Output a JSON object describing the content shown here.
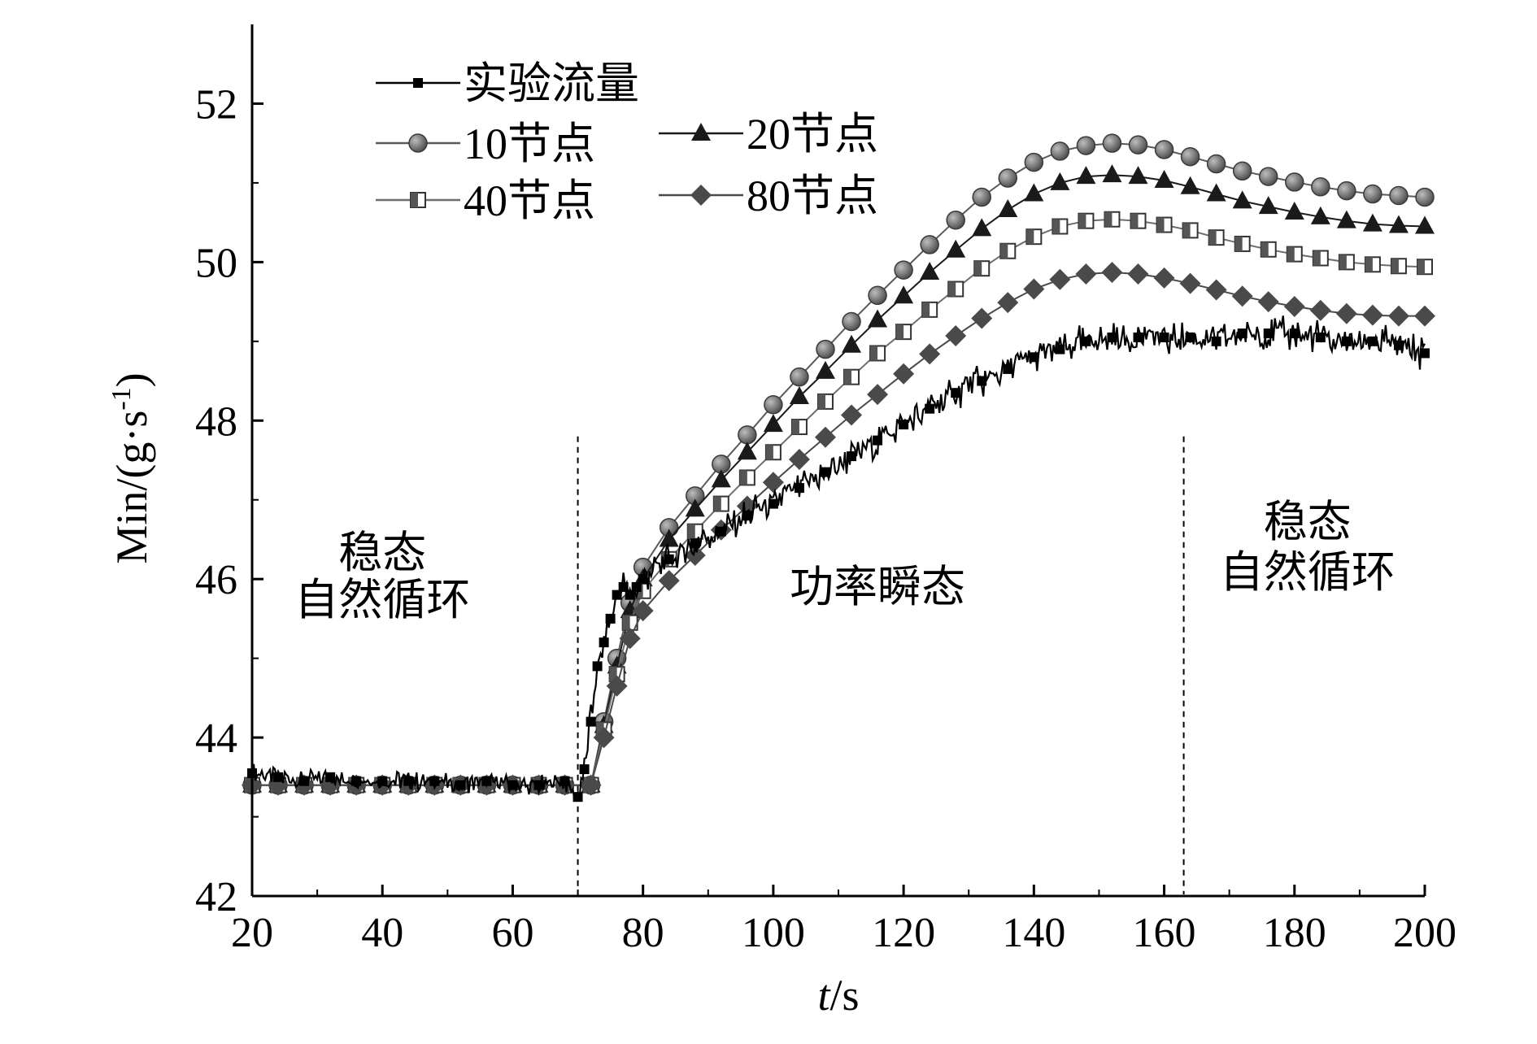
{
  "chart_data": {
    "type": "line",
    "xlabel_italic": "t",
    "xlabel_unit": "/s",
    "ylabel": "Min/(g·s",
    "ylabel_sup": "-1",
    "ylabel_close": ")",
    "xlim": [
      20,
      200
    ],
    "ylim": [
      42,
      53
    ],
    "xticks": [
      20,
      40,
      60,
      80,
      100,
      120,
      140,
      160,
      180,
      200
    ],
    "yticks": [
      42,
      44,
      46,
      48,
      50,
      52
    ],
    "grid": false,
    "legend_position": "top-left",
    "divider_times": [
      70,
      163
    ],
    "regions": [
      {
        "lines": [
          "稳态",
          "自然循环"
        ],
        "x": 40
      },
      {
        "lines": [
          "功率瞬态"
        ],
        "x": 116
      },
      {
        "lines": [
          "稳态",
          "自然循环"
        ],
        "x": 182
      }
    ],
    "series": [
      {
        "name": "实验流量",
        "marker": "square",
        "color": "#000000",
        "noisy": true,
        "x": [
          20,
          24,
          28,
          32,
          36,
          40,
          44,
          48,
          52,
          56,
          60,
          64,
          68,
          70,
          71,
          72,
          73,
          74,
          75,
          76,
          77,
          78,
          79,
          80,
          84,
          88,
          92,
          96,
          100,
          104,
          108,
          112,
          116,
          120,
          124,
          128,
          132,
          136,
          140,
          144,
          148,
          152,
          156,
          160,
          164,
          168,
          172,
          176,
          180,
          184,
          188,
          192,
          196,
          200
        ],
        "y": [
          43.55,
          43.5,
          43.45,
          43.5,
          43.45,
          43.45,
          43.45,
          43.45,
          43.4,
          43.45,
          43.4,
          43.4,
          43.45,
          43.25,
          43.6,
          44.2,
          44.9,
          45.2,
          45.5,
          45.8,
          45.9,
          45.8,
          45.9,
          46.0,
          46.25,
          46.45,
          46.6,
          46.8,
          46.95,
          47.15,
          47.35,
          47.55,
          47.75,
          47.95,
          48.15,
          48.35,
          48.5,
          48.65,
          48.8,
          48.9,
          49.0,
          49.05,
          49.05,
          49.05,
          49.05,
          49.0,
          49.1,
          49.1,
          49.1,
          49.05,
          49.0,
          49.0,
          48.95,
          48.85
        ]
      },
      {
        "name": "10节点",
        "marker": "circle",
        "color": "#5a5a5a",
        "x": [
          20,
          24,
          28,
          32,
          36,
          40,
          44,
          48,
          52,
          56,
          60,
          64,
          68,
          72,
          74,
          76,
          78,
          80,
          84,
          88,
          92,
          96,
          100,
          104,
          108,
          112,
          116,
          120,
          124,
          128,
          132,
          136,
          140,
          144,
          148,
          152,
          156,
          160,
          164,
          168,
          172,
          176,
          180,
          184,
          188,
          192,
          196,
          200
        ],
        "y": [
          43.4,
          43.4,
          43.4,
          43.4,
          43.4,
          43.4,
          43.4,
          43.4,
          43.4,
          43.4,
          43.4,
          43.4,
          43.4,
          43.4,
          44.2,
          45.0,
          45.7,
          46.15,
          46.65,
          47.05,
          47.45,
          47.82,
          48.2,
          48.55,
          48.9,
          49.25,
          49.58,
          49.9,
          50.22,
          50.53,
          50.82,
          51.06,
          51.26,
          51.4,
          51.47,
          51.5,
          51.48,
          51.42,
          51.33,
          51.24,
          51.15,
          51.08,
          51.01,
          50.95,
          50.9,
          50.86,
          50.84,
          50.82
        ]
      },
      {
        "name": "20节点",
        "marker": "triangle",
        "color": "#1a1a1a",
        "x": [
          20,
          24,
          28,
          32,
          36,
          40,
          44,
          48,
          52,
          56,
          60,
          64,
          68,
          72,
          74,
          76,
          78,
          80,
          84,
          88,
          92,
          96,
          100,
          104,
          108,
          112,
          116,
          120,
          124,
          128,
          132,
          136,
          140,
          144,
          148,
          152,
          156,
          160,
          164,
          168,
          172,
          176,
          180,
          184,
          188,
          192,
          196,
          200
        ],
        "y": [
          43.4,
          43.4,
          43.4,
          43.4,
          43.4,
          43.4,
          43.4,
          43.4,
          43.4,
          43.4,
          43.4,
          43.4,
          43.4,
          43.4,
          44.15,
          44.9,
          45.6,
          46.0,
          46.5,
          46.88,
          47.25,
          47.6,
          47.95,
          48.3,
          48.62,
          48.95,
          49.27,
          49.57,
          49.87,
          50.15,
          50.42,
          50.66,
          50.86,
          51.0,
          51.08,
          51.1,
          51.08,
          51.03,
          50.95,
          50.86,
          50.77,
          50.7,
          50.63,
          50.57,
          50.52,
          50.48,
          50.46,
          50.45
        ]
      },
      {
        "name": "40节点",
        "marker": "half-square",
        "color": "#6e6e6e",
        "x": [
          20,
          24,
          28,
          32,
          36,
          40,
          44,
          48,
          52,
          56,
          60,
          64,
          68,
          72,
          74,
          76,
          78,
          80,
          84,
          88,
          92,
          96,
          100,
          104,
          108,
          112,
          116,
          120,
          124,
          128,
          132,
          136,
          140,
          144,
          148,
          152,
          156,
          160,
          164,
          168,
          172,
          176,
          180,
          184,
          188,
          192,
          196,
          200
        ],
        "y": [
          43.4,
          43.4,
          43.4,
          43.4,
          43.4,
          43.4,
          43.4,
          43.4,
          43.4,
          43.4,
          43.4,
          43.4,
          43.4,
          43.4,
          44.1,
          44.8,
          45.45,
          45.85,
          46.25,
          46.6,
          46.95,
          47.28,
          47.6,
          47.92,
          48.24,
          48.55,
          48.85,
          49.12,
          49.4,
          49.66,
          49.92,
          50.14,
          50.32,
          50.45,
          50.52,
          50.54,
          50.52,
          50.47,
          50.4,
          50.31,
          50.23,
          50.16,
          50.1,
          50.05,
          50.0,
          49.97,
          49.95,
          49.94
        ]
      },
      {
        "name": "80节点",
        "marker": "diamond",
        "color": "#4a4a4a",
        "x": [
          20,
          24,
          28,
          32,
          36,
          40,
          44,
          48,
          52,
          56,
          60,
          64,
          68,
          72,
          74,
          76,
          78,
          80,
          84,
          88,
          92,
          96,
          100,
          104,
          108,
          112,
          116,
          120,
          124,
          128,
          132,
          136,
          140,
          144,
          148,
          152,
          156,
          160,
          164,
          168,
          172,
          176,
          180,
          184,
          188,
          192,
          196,
          200
        ],
        "y": [
          43.4,
          43.4,
          43.4,
          43.4,
          43.4,
          43.4,
          43.4,
          43.4,
          43.4,
          43.4,
          43.4,
          43.4,
          43.4,
          43.4,
          44.0,
          44.65,
          45.25,
          45.6,
          45.98,
          46.3,
          46.62,
          46.92,
          47.22,
          47.51,
          47.79,
          48.07,
          48.33,
          48.59,
          48.84,
          49.07,
          49.29,
          49.49,
          49.66,
          49.78,
          49.85,
          49.87,
          49.85,
          49.8,
          49.73,
          49.65,
          49.57,
          49.5,
          49.44,
          49.39,
          49.35,
          49.33,
          49.32,
          49.32
        ]
      }
    ]
  }
}
